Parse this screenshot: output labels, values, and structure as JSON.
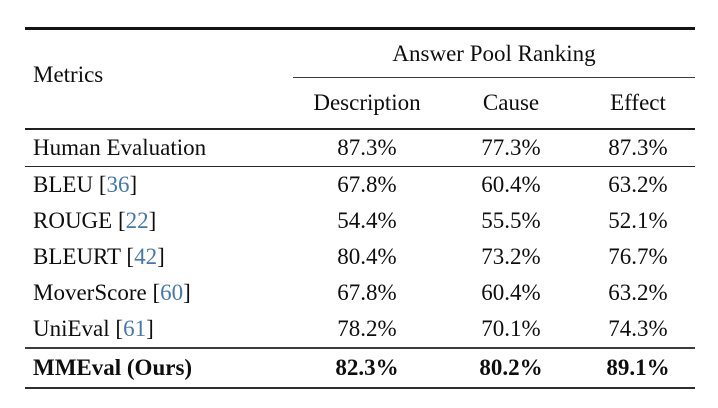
{
  "table": {
    "corner_label": "Metrics",
    "group_header": "Answer Pool Ranking",
    "columns": [
      "Description",
      "Cause",
      "Effect"
    ],
    "rows": [
      {
        "metric": "Human Evaluation",
        "citation": "",
        "values": [
          "87.3%",
          "77.3%",
          "87.3%"
        ],
        "bold": false
      },
      {
        "metric": "BLEU",
        "citation": "36",
        "values": [
          "67.8%",
          "60.4%",
          "63.2%"
        ],
        "bold": false
      },
      {
        "metric": "ROUGE",
        "citation": "22",
        "values": [
          "54.4%",
          "55.5%",
          "52.1%"
        ],
        "bold": false
      },
      {
        "metric": "BLEURT",
        "citation": "42",
        "values": [
          "80.4%",
          "73.2%",
          "76.7%"
        ],
        "bold": false
      },
      {
        "metric": "MoverScore",
        "citation": "60",
        "values": [
          "67.8%",
          "60.4%",
          "63.2%"
        ],
        "bold": false
      },
      {
        "metric": "UniEval",
        "citation": "61",
        "values": [
          "78.2%",
          "70.1%",
          "74.3%"
        ],
        "bold": false
      },
      {
        "metric": "MMEval (Ours)",
        "citation": "",
        "values": [
          "82.3%",
          "80.2%",
          "89.1%"
        ],
        "bold": true
      }
    ],
    "colors": {
      "citation_blue": "#4478ad",
      "rule_color": "#141414",
      "text_color": "#0e0e0e",
      "background": "#ffffff"
    }
  },
  "chart_data": {
    "type": "table",
    "title": "Answer Pool Ranking",
    "columns": [
      "Metrics",
      "Description",
      "Cause",
      "Effect"
    ],
    "rows": [
      [
        "Human Evaluation",
        87.3,
        77.3,
        87.3
      ],
      [
        "BLEU [36]",
        67.8,
        60.4,
        63.2
      ],
      [
        "ROUGE [22]",
        54.4,
        55.5,
        52.1
      ],
      [
        "BLEURT [42]",
        80.4,
        73.2,
        76.7
      ],
      [
        "MoverScore [60]",
        67.8,
        60.4,
        63.2
      ],
      [
        "UniEval [61]",
        78.2,
        70.1,
        74.3
      ],
      [
        "MMEval (Ours)",
        82.3,
        80.2,
        89.1
      ]
    ],
    "units": "%"
  }
}
